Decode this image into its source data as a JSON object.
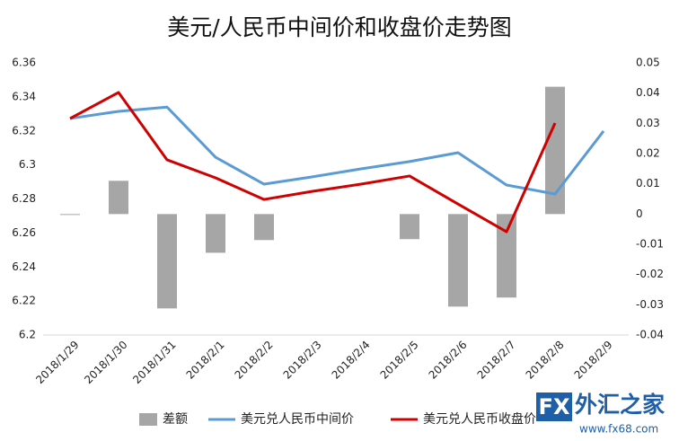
{
  "chart_data": {
    "type": "combo",
    "title": "美元/人民币中间价和收盘价走势图",
    "categories": [
      "2018/1/29",
      "2018/1/30",
      "2018/1/31",
      "2018/2/1",
      "2018/2/2",
      "2018/2/3",
      "2018/2/4",
      "2018/2/5",
      "2018/2/6",
      "2018/2/7",
      "2018/2/8",
      "2018/2/9"
    ],
    "series": [
      {
        "name": "差额",
        "type": "bar",
        "axis": "y2",
        "color": "#a6a6a6",
        "values": [
          0,
          0.011,
          -0.0312,
          -0.0128,
          -0.0086,
          null,
          null,
          -0.0083,
          -0.0306,
          -0.0276,
          0.0421,
          null
        ]
      },
      {
        "name": "美元兑人民币中间价",
        "type": "line",
        "color": "#5b9bd5",
        "values": [
          6.3273,
          6.3315,
          6.334,
          6.3045,
          6.2887,
          6.293,
          6.2977,
          6.302,
          6.3072,
          6.2882,
          6.2829,
          6.3199
        ]
      },
      {
        "name": "美元兑人民币收盘价",
        "type": "line",
        "color": "#d00000",
        "values": [
          6.3273,
          6.3426,
          6.303,
          6.2924,
          6.2797,
          6.2845,
          6.2887,
          6.2935,
          6.277,
          6.2607,
          6.3246,
          null
        ]
      }
    ],
    "ylim": [
      6.2,
      6.36
    ],
    "yticks": [
      6.2,
      6.22,
      6.24,
      6.26,
      6.28,
      6.3,
      6.32,
      6.34,
      6.36
    ],
    "y2lim": [
      -0.04,
      0.05
    ],
    "y2ticks": [
      -0.04,
      -0.03,
      -0.02,
      -0.01,
      0,
      0.01,
      0.02,
      0.03,
      0.04,
      0.05
    ],
    "grid": false,
    "legend": "bottom"
  },
  "logo": {
    "brand": "FX",
    "name": "外汇之家",
    "url": "www.fx68.com"
  }
}
